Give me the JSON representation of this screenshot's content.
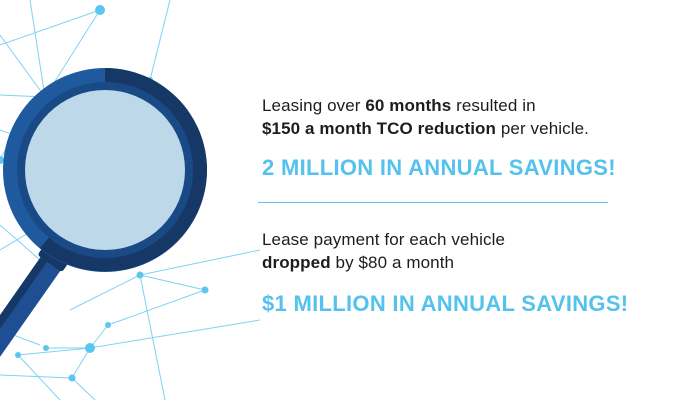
{
  "colors": {
    "accent": "#54c2ec",
    "text": "#1d1d1f",
    "network": "#5bc6ef",
    "lens": "#bcd8e9",
    "ring_dark": "#163866",
    "ring_mid": "#1f5a9e",
    "handle": "#1e4f93"
  },
  "stat_1": {
    "line1_pre": "Leasing over ",
    "line1_bold": "60 months",
    "line1_post": " resulted in",
    "line2_bold": "$150 a month TCO reduction",
    "line2_post": " per vehicle.",
    "headline": "2 MILLION IN ANNUAL SAVINGS!"
  },
  "stat_2": {
    "line1": "Lease payment for each vehicle",
    "line2_bold": "dropped",
    "line2_post": " by $80 a month",
    "headline": "$1 MILLION IN ANNUAL SAVINGS!"
  },
  "illustration": {
    "icon": "magnifying-glass-icon",
    "background": "network-nodes"
  }
}
